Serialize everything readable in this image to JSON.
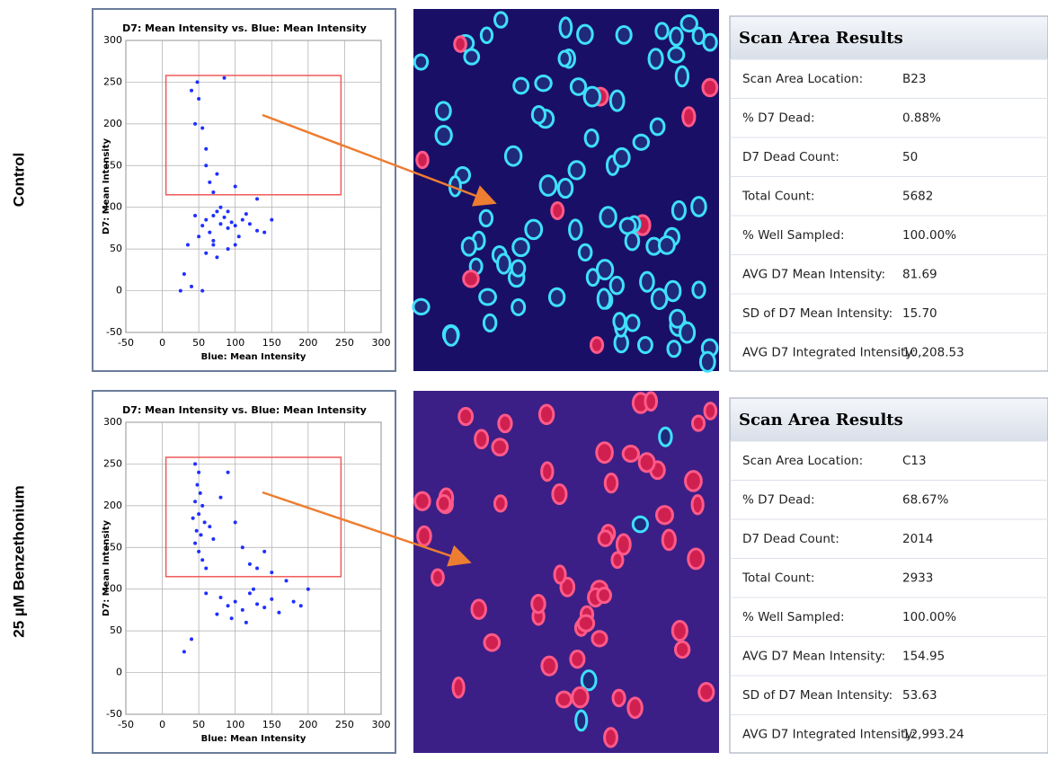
{
  "panels": [
    {
      "label": "Control",
      "plot": {
        "type": "scatter",
        "title": "D7: Mean Intensity vs. Blue: Mean Intensity",
        "x_label": "Blue: Mean Intensity",
        "y_label": "D7: Mean Intensity",
        "color": "#1f2fff",
        "gate_color": "#f05a5a",
        "xlim": [
          -50,
          300
        ],
        "ylim": [
          -50,
          300
        ],
        "xticks": [
          -50,
          0,
          50,
          100,
          150,
          200,
          250,
          300
        ],
        "yticks": [
          -50,
          0,
          50,
          100,
          150,
          200,
          250,
          300
        ],
        "grid": true,
        "gate": {
          "x": [
            5,
            245
          ],
          "y": [
            115,
            258
          ]
        },
        "x": [
          60,
          70,
          80,
          90,
          65,
          75,
          85,
          95,
          100,
          55,
          110,
          120,
          130,
          50,
          45,
          70,
          80,
          90,
          105,
          115,
          140,
          150,
          35,
          60,
          75,
          90,
          30,
          40,
          55,
          25,
          70,
          100,
          40,
          45,
          50,
          55,
          60,
          65,
          70,
          48,
          85,
          100,
          130,
          75,
          60
        ],
        "y": [
          85,
          90,
          80,
          75,
          70,
          95,
          88,
          82,
          78,
          78,
          85,
          80,
          72,
          65,
          90,
          60,
          100,
          95,
          65,
          92,
          70,
          85,
          55,
          45,
          40,
          50,
          20,
          5,
          0,
          0,
          55,
          55,
          240,
          200,
          230,
          195,
          150,
          130,
          118,
          250,
          255,
          125,
          110,
          140,
          170
        ]
      },
      "table": {
        "title": "Scan Area Results",
        "rows": [
          [
            "Scan Area Location:",
            "B23"
          ],
          [
            "% D7 Dead:",
            "0.88%"
          ],
          [
            "D7 Dead Count:",
            "50"
          ],
          [
            "Total Count:",
            "5682"
          ],
          [
            "% Well Sampled:",
            "100.00%"
          ],
          [
            "AVG D7 Mean Intensity:",
            "81.69"
          ],
          [
            "SD of D7 Mean Intensity:",
            "15.70"
          ],
          [
            "AVG D7 Integrated Intensity:",
            "10,208.53"
          ]
        ]
      }
    },
    {
      "label": "25 µM Benzethonium",
      "plot": {
        "type": "scatter",
        "title": "D7: Mean Intensity vs. Blue: Mean Intensity",
        "x_label": "Blue: Mean Intensity",
        "y_label": "D7: Mean Intensity",
        "color": "#1f2fff",
        "gate_color": "#f05a5a",
        "xlim": [
          -50,
          300
        ],
        "ylim": [
          -50,
          300
        ],
        "xticks": [
          -50,
          0,
          50,
          100,
          150,
          200,
          250,
          300
        ],
        "yticks": [
          -50,
          0,
          50,
          100,
          150,
          200,
          250,
          300
        ],
        "grid": true,
        "gate": {
          "x": [
            5,
            245
          ],
          "y": [
            115,
            258
          ]
        },
        "x": [
          45,
          50,
          48,
          52,
          45,
          55,
          50,
          42,
          58,
          47,
          53,
          45,
          50,
          55,
          60,
          65,
          70,
          80,
          90,
          100,
          110,
          120,
          130,
          150,
          170,
          80,
          90,
          100,
          110,
          120,
          130,
          140,
          150,
          160,
          180,
          190,
          75,
          95,
          115,
          125,
          60,
          40,
          30,
          200,
          140
        ],
        "y": [
          250,
          240,
          225,
          215,
          205,
          200,
          190,
          185,
          180,
          170,
          165,
          155,
          145,
          135,
          125,
          175,
          160,
          210,
          240,
          180,
          150,
          130,
          125,
          120,
          110,
          90,
          80,
          85,
          75,
          95,
          82,
          78,
          88,
          72,
          85,
          80,
          70,
          65,
          60,
          100,
          95,
          40,
          25,
          100,
          145
        ]
      },
      "table": {
        "title": "Scan Area Results",
        "rows": [
          [
            "Scan Area Location:",
            "C13"
          ],
          [
            "% D7 Dead:",
            "68.67%"
          ],
          [
            "D7 Dead Count:",
            "2014"
          ],
          [
            "Total Count:",
            "2933"
          ],
          [
            "% Well Sampled:",
            "100.00%"
          ],
          [
            "AVG D7 Mean Intensity:",
            "154.95"
          ],
          [
            "SD of D7 Mean Intensity:",
            "53.63"
          ],
          [
            "AVG D7 Integrated Intensity:",
            "12,993.24"
          ]
        ]
      }
    }
  ]
}
